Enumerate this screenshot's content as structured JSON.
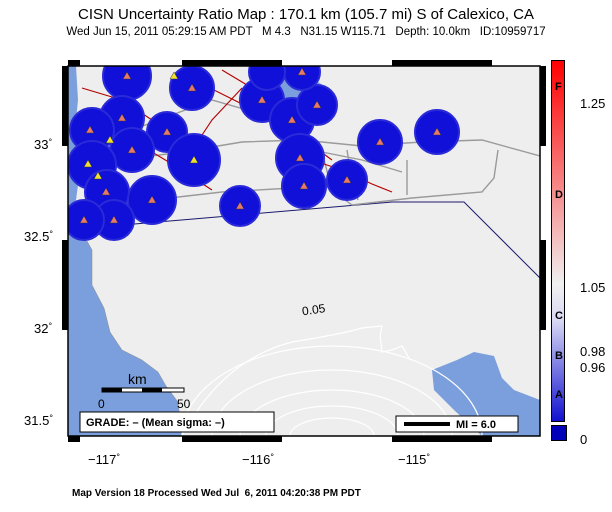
{
  "title": "CISN Uncertainty Ratio Map : 170.1 km (105.7 mi) S of Calexico, CA",
  "subtitle": "Wed Jun 15, 2011 05:29:15 AM PDT   M 4.3   N31.15 W115.71   Depth: 10.0km   ID:10959717",
  "footer": "Map Version 18 Processed Wed Jul  6, 2011 04:20:38 PM PDT",
  "map": {
    "lat_ticks": [
      "33",
      "32.5",
      "32",
      "31.5"
    ],
    "lon_ticks": [
      "−117",
      "−116",
      "−115"
    ],
    "degree_symbol": "°",
    "contour_label": "0.05",
    "scale_unit": "km",
    "scale_min": "0",
    "scale_max": "50",
    "grade_label": "GRADE: – (Mean sigma: –)",
    "mi_label": "MI = 6.0"
  },
  "colorbar": {
    "tick_labels": [
      "1.25",
      "1.05",
      "0.98",
      "0.96",
      "0"
    ],
    "letters": [
      "F",
      "D",
      "C",
      "B",
      "A"
    ],
    "colors": {
      "high": "#ff0000",
      "mid": "#f0f0f0",
      "low": "#1010d0"
    }
  },
  "colors": {
    "land": "#eeeeee",
    "water": "#7b9fdc",
    "station_circle": "#1010d8",
    "fault": "#b40000",
    "road": "#9a9a9a",
    "border": "#1a1a6e"
  }
}
